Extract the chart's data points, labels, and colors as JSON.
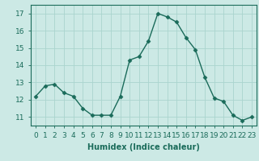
{
  "x": [
    0,
    1,
    2,
    3,
    4,
    5,
    6,
    7,
    8,
    9,
    10,
    11,
    12,
    13,
    14,
    15,
    16,
    17,
    18,
    19,
    20,
    21,
    22,
    23
  ],
  "y": [
    12.2,
    12.8,
    12.9,
    12.4,
    12.2,
    11.5,
    11.1,
    11.1,
    11.1,
    12.2,
    14.3,
    14.5,
    15.4,
    17.0,
    16.8,
    16.5,
    15.6,
    14.9,
    13.3,
    12.1,
    11.9,
    11.1,
    10.8,
    11.0
  ],
  "title": "",
  "xlabel": "Humidex (Indice chaleur)",
  "ylabel": "",
  "ylim": [
    10.5,
    17.5
  ],
  "xlim": [
    -0.5,
    23.5
  ],
  "yticks": [
    11,
    12,
    13,
    14,
    15,
    16,
    17
  ],
  "xticks": [
    0,
    1,
    2,
    3,
    4,
    5,
    6,
    7,
    8,
    9,
    10,
    11,
    12,
    13,
    14,
    15,
    16,
    17,
    18,
    19,
    20,
    21,
    22,
    23
  ],
  "line_color": "#1a6b5a",
  "marker": "D",
  "marker_size": 2.5,
  "bg_color": "#cce9e5",
  "grid_color": "#aad4ce",
  "label_fontsize": 7,
  "tick_fontsize": 6.5
}
